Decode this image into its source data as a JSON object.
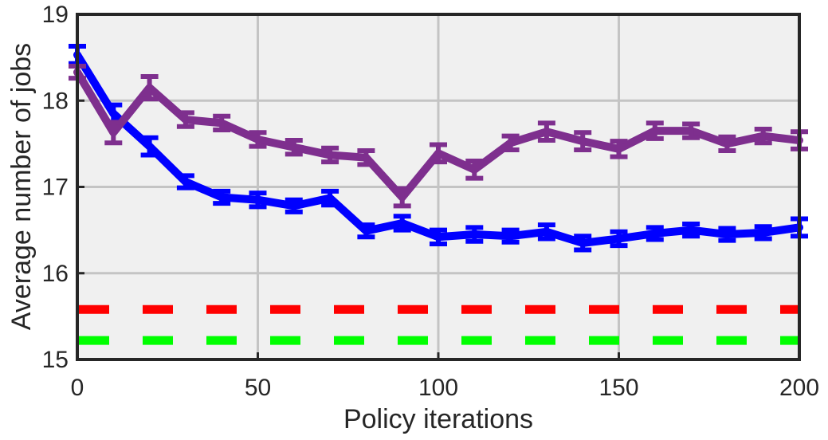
{
  "chart_data": {
    "type": "line",
    "title": "",
    "xlabel": "Policy iterations",
    "ylabel": "Average number of jobs",
    "xlim": [
      0,
      200
    ],
    "ylim": [
      15,
      19
    ],
    "xticks": [
      0,
      50,
      100,
      150,
      200
    ],
    "yticks": [
      15,
      16,
      17,
      18,
      19
    ],
    "grid": true,
    "legend": "none",
    "series": [
      {
        "style": "solid-errorbar",
        "color": "#0000ff",
        "x": [
          0,
          10,
          20,
          30,
          40,
          50,
          60,
          70,
          80,
          90,
          100,
          110,
          120,
          130,
          140,
          150,
          160,
          170,
          180,
          190,
          200
        ],
        "y": [
          18.53,
          17.85,
          17.47,
          17.06,
          16.88,
          16.85,
          16.78,
          16.87,
          16.49,
          16.58,
          16.42,
          16.45,
          16.43,
          16.48,
          16.35,
          16.4,
          16.46,
          16.5,
          16.45,
          16.47,
          16.53
        ],
        "err": [
          0.1,
          0.1,
          0.1,
          0.07,
          0.07,
          0.08,
          0.07,
          0.08,
          0.07,
          0.08,
          0.08,
          0.08,
          0.07,
          0.08,
          0.08,
          0.08,
          0.07,
          0.07,
          0.07,
          0.07,
          0.1
        ]
      },
      {
        "style": "solid-errorbar",
        "color": "#7e2f8e",
        "x": [
          0,
          10,
          20,
          30,
          40,
          50,
          60,
          70,
          80,
          90,
          100,
          110,
          120,
          130,
          140,
          150,
          160,
          170,
          180,
          190,
          200
        ],
        "y": [
          18.33,
          17.63,
          18.15,
          17.78,
          17.74,
          17.55,
          17.46,
          17.37,
          17.34,
          16.88,
          17.39,
          17.2,
          17.51,
          17.64,
          17.53,
          17.44,
          17.65,
          17.65,
          17.5,
          17.59,
          17.54
        ],
        "err": [
          0.07,
          0.12,
          0.13,
          0.08,
          0.08,
          0.08,
          0.08,
          0.08,
          0.08,
          0.1,
          0.1,
          0.1,
          0.08,
          0.1,
          0.1,
          0.09,
          0.09,
          0.08,
          0.08,
          0.08,
          0.1
        ]
      },
      {
        "style": "dashed",
        "color": "#ff0000",
        "x": [
          0,
          200
        ],
        "y": [
          15.58,
          15.58
        ]
      },
      {
        "style": "dashed",
        "color": "#00ff00",
        "x": [
          0,
          200
        ],
        "y": [
          15.22,
          15.22
        ]
      }
    ]
  }
}
